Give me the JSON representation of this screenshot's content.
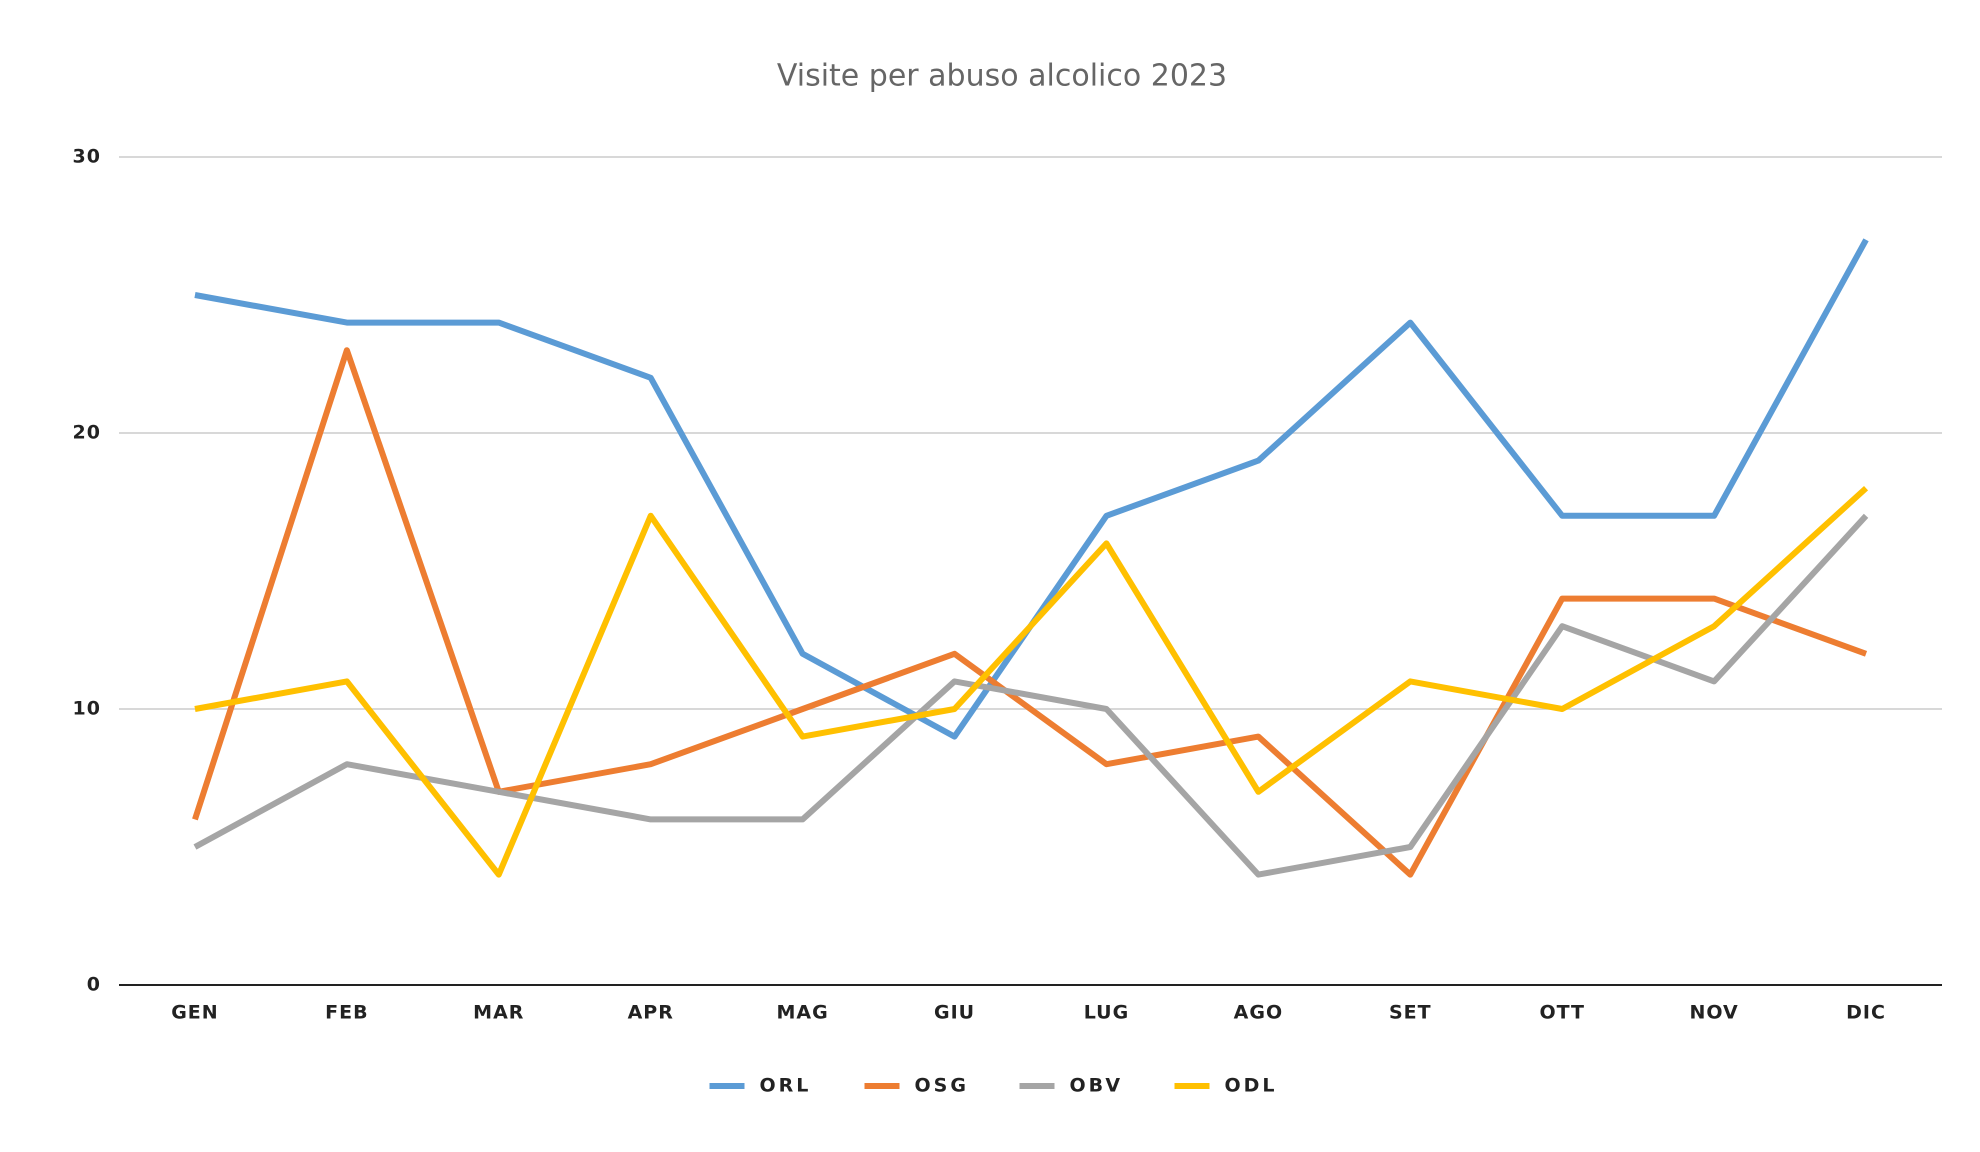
{
  "chart_data": {
    "type": "line",
    "title": "Visite per abuso alcolico 2023",
    "categories": [
      "GEN",
      "FEB",
      "MAR",
      "APR",
      "MAG",
      "GIU",
      "LUG",
      "AGO",
      "SET",
      "OTT",
      "NOV",
      "DIC"
    ],
    "series": [
      {
        "name": "ORL",
        "color": "#5b9bd5",
        "values": [
          25,
          24,
          24,
          22,
          12,
          9,
          17,
          19,
          24,
          17,
          17,
          27
        ]
      },
      {
        "name": "OSG",
        "color": "#ed7d31",
        "values": [
          6,
          23,
          7,
          8,
          10,
          12,
          8,
          9,
          4,
          14,
          14,
          12
        ]
      },
      {
        "name": "OBV",
        "color": "#a5a5a5",
        "values": [
          5,
          8,
          7,
          6,
          6,
          11,
          10,
          4,
          5,
          13,
          11,
          17
        ]
      },
      {
        "name": "ODL",
        "color": "#ffc000",
        "values": [
          10,
          11,
          4,
          17,
          9,
          10,
          16,
          7,
          11,
          10,
          13,
          18
        ]
      }
    ],
    "ylim": [
      0,
      30
    ],
    "yticks": [
      0,
      10,
      20,
      30
    ],
    "grid": true,
    "legend": "bottom"
  }
}
